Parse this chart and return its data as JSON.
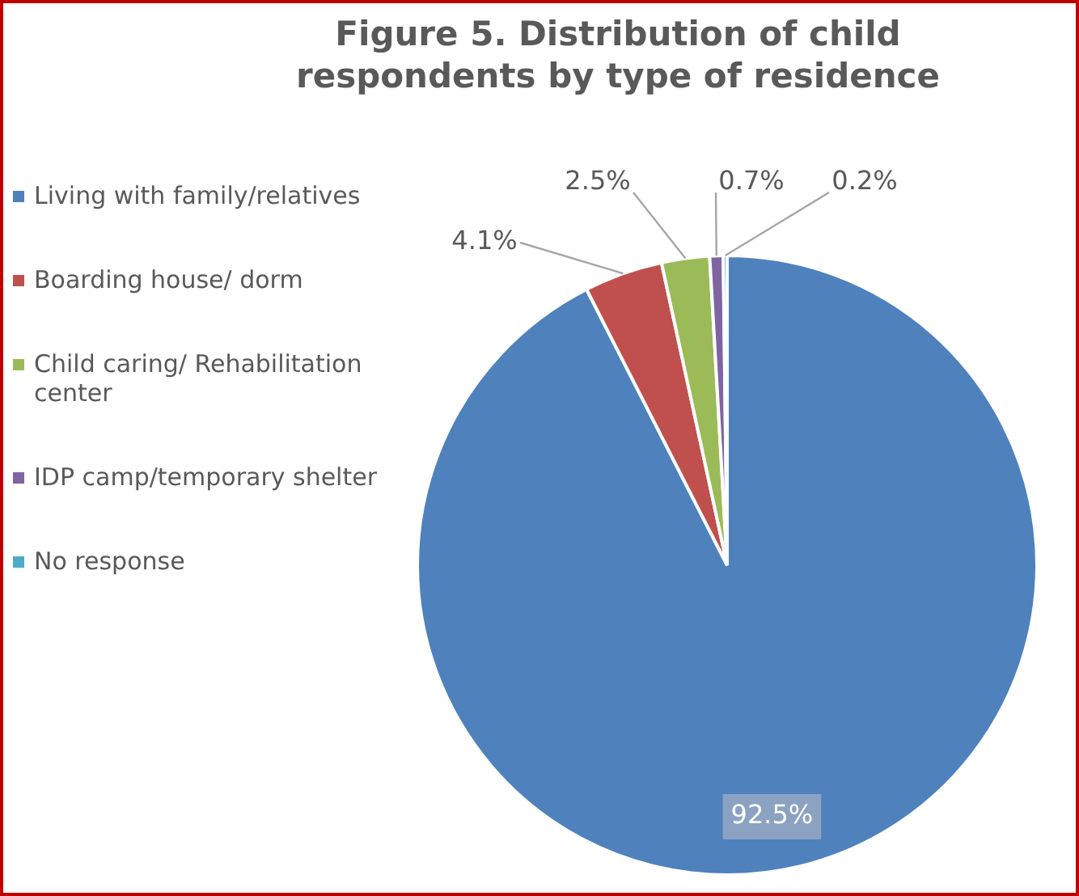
{
  "chart_data": {
    "type": "pie",
    "title": "Figure 5. Distribution of child respondents by type of residence",
    "categories": [
      "Living with family/relatives",
      "Boarding house/ dorm",
      "Child caring/ Rehabilitation center",
      "IDP camp/temporary shelter",
      "No response"
    ],
    "values": [
      92.5,
      4.1,
      2.5,
      0.7,
      0.2
    ],
    "colors": [
      "#4f81bd",
      "#c0504d",
      "#9bbb59",
      "#8064a2",
      "#4bacc6"
    ],
    "value_labels": [
      "92.5%",
      "4.1%",
      "2.5%",
      "0.7%",
      "0.2%"
    ],
    "legend": "left"
  }
}
